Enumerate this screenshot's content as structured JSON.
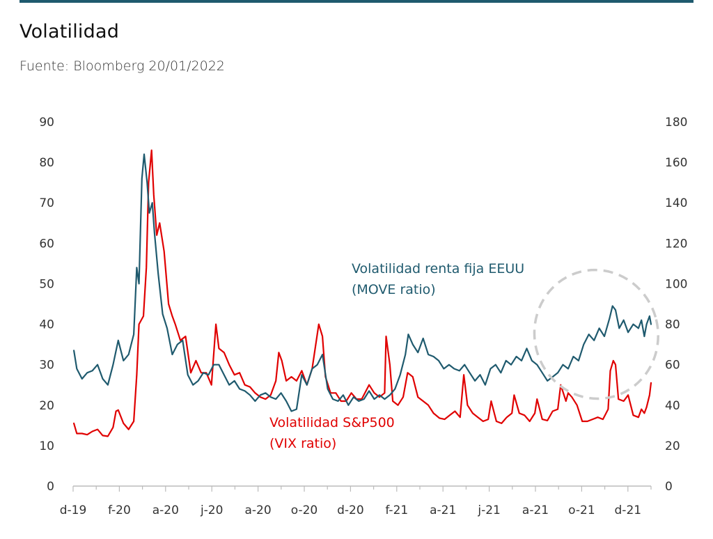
{
  "header": {
    "title": "Volatilidad",
    "subtitle": "Fuente: Bloomberg 20/01/2022"
  },
  "colors": {
    "move": "#1f5a6e",
    "vix": "#e00000",
    "axis": "#bbbbbb",
    "highlight": "#cccccc"
  },
  "chart_data": {
    "type": "line",
    "title": "Volatilidad",
    "subtitle": "Fuente: Bloomberg 20/01/2022",
    "x_tick_labels": [
      "d-19",
      "f-20",
      "a-20",
      "j-20",
      "a-20",
      "o-20",
      "d-20",
      "f-21",
      "a-21",
      "j-21",
      "a-21",
      "o-21",
      "d-21"
    ],
    "x_range": [
      "2019-12-01",
      "2022-01-20"
    ],
    "y_left": {
      "ticks": [
        0,
        10,
        20,
        30,
        40,
        50,
        60,
        70,
        80,
        90
      ],
      "range": [
        0,
        90
      ]
    },
    "y_right": {
      "ticks": [
        0,
        20,
        40,
        60,
        80,
        100,
        120,
        140,
        160,
        180
      ],
      "range": [
        0,
        180
      ]
    },
    "grid": false,
    "annotations": [
      {
        "text_lines": [
          "Volatilidad renta fija EEUU",
          "(MOVE ratio)"
        ],
        "series": "move"
      },
      {
        "text_lines": [
          "Volatilidad S&P500",
          "(VIX ratio)"
        ],
        "series": "vix"
      }
    ],
    "highlight": {
      "shape": "dashed-ellipse",
      "x_range": [
        "2021-08-25",
        "2022-01-20"
      ],
      "y_right_range": [
        50,
        100
      ]
    },
    "series": [
      {
        "name": "Volatilidad S&P500 (VIX ratio)",
        "axis": "left",
        "points": [
          [
            "2019-12-02",
            15.5
          ],
          [
            "2019-12-06",
            13
          ],
          [
            "2019-12-13",
            13
          ],
          [
            "2019-12-20",
            12.7
          ],
          [
            "2019-12-27",
            13.5
          ],
          [
            "2020-01-03",
            14
          ],
          [
            "2020-01-10",
            12.5
          ],
          [
            "2020-01-17",
            12.3
          ],
          [
            "2020-01-24",
            14.5
          ],
          [
            "2020-01-28",
            18.5
          ],
          [
            "2020-01-31",
            18.8
          ],
          [
            "2020-02-07",
            15.5
          ],
          [
            "2020-02-14",
            14
          ],
          [
            "2020-02-21",
            16
          ],
          [
            "2020-02-25",
            27.5
          ],
          [
            "2020-02-28",
            40
          ],
          [
            "2020-03-05",
            42
          ],
          [
            "2020-03-09",
            54
          ],
          [
            "2020-03-12",
            75
          ],
          [
            "2020-03-16",
            83
          ],
          [
            "2020-03-19",
            72
          ],
          [
            "2020-03-23",
            62
          ],
          [
            "2020-03-27",
            65
          ],
          [
            "2020-04-02",
            58
          ],
          [
            "2020-04-08",
            45
          ],
          [
            "2020-04-13",
            42
          ],
          [
            "2020-04-17",
            40
          ],
          [
            "2020-04-24",
            36
          ],
          [
            "2020-05-01",
            37
          ],
          [
            "2020-05-08",
            28
          ],
          [
            "2020-05-15",
            31
          ],
          [
            "2020-05-22",
            28
          ],
          [
            "2020-05-29",
            28
          ],
          [
            "2020-06-05",
            25
          ],
          [
            "2020-06-11",
            40
          ],
          [
            "2020-06-15",
            34
          ],
          [
            "2020-06-22",
            33
          ],
          [
            "2020-06-29",
            30
          ],
          [
            "2020-07-06",
            27.5
          ],
          [
            "2020-07-13",
            28
          ],
          [
            "2020-07-20",
            25
          ],
          [
            "2020-07-27",
            24.5
          ],
          [
            "2020-08-03",
            23
          ],
          [
            "2020-08-10",
            22
          ],
          [
            "2020-08-17",
            21.5
          ],
          [
            "2020-08-24",
            22.5
          ],
          [
            "2020-08-31",
            26
          ],
          [
            "2020-09-04",
            33
          ],
          [
            "2020-09-08",
            31
          ],
          [
            "2020-09-14",
            26
          ],
          [
            "2020-09-21",
            27
          ],
          [
            "2020-09-28",
            26
          ],
          [
            "2020-10-05",
            28.5
          ],
          [
            "2020-10-12",
            25
          ],
          [
            "2020-10-19",
            29
          ],
          [
            "2020-10-28",
            40
          ],
          [
            "2020-11-02",
            37
          ],
          [
            "2020-11-06",
            27
          ],
          [
            "2020-11-13",
            23
          ],
          [
            "2020-11-20",
            23
          ],
          [
            "2020-11-27",
            21
          ],
          [
            "2020-12-04",
            21
          ],
          [
            "2020-12-11",
            23
          ],
          [
            "2020-12-18",
            21.5
          ],
          [
            "2020-12-25",
            21.5
          ],
          [
            "2021-01-04",
            25
          ],
          [
            "2021-01-11",
            23
          ],
          [
            "2021-01-18",
            22
          ],
          [
            "2021-01-25",
            23
          ],
          [
            "2021-01-27",
            37
          ],
          [
            "2021-02-01",
            30
          ],
          [
            "2021-02-05",
            21
          ],
          [
            "2021-02-12",
            20
          ],
          [
            "2021-02-19",
            22
          ],
          [
            "2021-02-25",
            28
          ],
          [
            "2021-03-04",
            27
          ],
          [
            "2021-03-11",
            22
          ],
          [
            "2021-03-18",
            21
          ],
          [
            "2021-03-25",
            20
          ],
          [
            "2021-04-01",
            18
          ],
          [
            "2021-04-09",
            16.8
          ],
          [
            "2021-04-16",
            16.5
          ],
          [
            "2021-04-23",
            17.5
          ],
          [
            "2021-04-30",
            18.5
          ],
          [
            "2021-05-07",
            17
          ],
          [
            "2021-05-12",
            27.5
          ],
          [
            "2021-05-17",
            20
          ],
          [
            "2021-05-24",
            18
          ],
          [
            "2021-05-31",
            17
          ],
          [
            "2021-06-07",
            16
          ],
          [
            "2021-06-14",
            16.5
          ],
          [
            "2021-06-18",
            21
          ],
          [
            "2021-06-25",
            16
          ],
          [
            "2021-07-02",
            15.5
          ],
          [
            "2021-07-09",
            17
          ],
          [
            "2021-07-16",
            18
          ],
          [
            "2021-07-19",
            22.5
          ],
          [
            "2021-07-26",
            18
          ],
          [
            "2021-08-02",
            17.5
          ],
          [
            "2021-08-09",
            16
          ],
          [
            "2021-08-16",
            18
          ],
          [
            "2021-08-19",
            21.5
          ],
          [
            "2021-08-26",
            16.5
          ],
          [
            "2021-09-02",
            16.2
          ],
          [
            "2021-09-09",
            18.5
          ],
          [
            "2021-09-16",
            19
          ],
          [
            "2021-09-20",
            25
          ],
          [
            "2021-09-27",
            21
          ],
          [
            "2021-09-30",
            23
          ],
          [
            "2021-10-05",
            22
          ],
          [
            "2021-10-12",
            20
          ],
          [
            "2021-10-19",
            16
          ],
          [
            "2021-10-26",
            16
          ],
          [
            "2021-11-02",
            16.5
          ],
          [
            "2021-11-09",
            17
          ],
          [
            "2021-11-16",
            16.5
          ],
          [
            "2021-11-23",
            19
          ],
          [
            "2021-11-26",
            28.5
          ],
          [
            "2021-11-30",
            31
          ],
          [
            "2021-12-03",
            30
          ],
          [
            "2021-12-07",
            21.5
          ],
          [
            "2021-12-14",
            21
          ],
          [
            "2021-12-20",
            22.5
          ],
          [
            "2021-12-27",
            17.5
          ],
          [
            "2022-01-03",
            17
          ],
          [
            "2022-01-07",
            19
          ],
          [
            "2022-01-11",
            18
          ],
          [
            "2022-01-14",
            19.5
          ],
          [
            "2022-01-18",
            22.5
          ],
          [
            "2022-01-20",
            25.5
          ]
        ]
      },
      {
        "name": "Volatilidad renta fija EEUU (MOVE ratio)",
        "axis": "right",
        "points": [
          [
            "2019-12-02",
            67
          ],
          [
            "2019-12-06",
            58
          ],
          [
            "2019-12-13",
            53
          ],
          [
            "2019-12-20",
            56
          ],
          [
            "2019-12-27",
            57
          ],
          [
            "2020-01-03",
            60
          ],
          [
            "2020-01-10",
            53
          ],
          [
            "2020-01-17",
            50
          ],
          [
            "2020-01-24",
            60
          ],
          [
            "2020-01-31",
            72
          ],
          [
            "2020-02-07",
            62
          ],
          [
            "2020-02-14",
            65
          ],
          [
            "2020-02-21",
            75
          ],
          [
            "2020-02-25",
            108
          ],
          [
            "2020-02-28",
            100
          ],
          [
            "2020-03-03",
            152
          ],
          [
            "2020-03-06",
            164
          ],
          [
            "2020-03-10",
            150
          ],
          [
            "2020-03-13",
            135
          ],
          [
            "2020-03-17",
            140
          ],
          [
            "2020-03-20",
            125
          ],
          [
            "2020-03-25",
            105
          ],
          [
            "2020-03-31",
            85
          ],
          [
            "2020-04-06",
            78
          ],
          [
            "2020-04-13",
            65
          ],
          [
            "2020-04-20",
            70
          ],
          [
            "2020-04-27",
            72
          ],
          [
            "2020-05-04",
            55
          ],
          [
            "2020-05-11",
            50
          ],
          [
            "2020-05-18",
            52
          ],
          [
            "2020-05-25",
            56
          ],
          [
            "2020-06-01",
            55
          ],
          [
            "2020-06-08",
            60
          ],
          [
            "2020-06-15",
            60
          ],
          [
            "2020-06-22",
            55
          ],
          [
            "2020-06-29",
            50
          ],
          [
            "2020-07-06",
            52
          ],
          [
            "2020-07-13",
            48
          ],
          [
            "2020-07-20",
            47
          ],
          [
            "2020-07-27",
            45
          ],
          [
            "2020-08-03",
            42
          ],
          [
            "2020-08-10",
            45
          ],
          [
            "2020-08-17",
            46
          ],
          [
            "2020-08-24",
            44
          ],
          [
            "2020-08-31",
            43
          ],
          [
            "2020-09-07",
            46
          ],
          [
            "2020-09-14",
            42
          ],
          [
            "2020-09-21",
            37
          ],
          [
            "2020-09-28",
            38
          ],
          [
            "2020-10-05",
            55
          ],
          [
            "2020-10-12",
            50
          ],
          [
            "2020-10-19",
            58
          ],
          [
            "2020-10-26",
            60
          ],
          [
            "2020-11-02",
            65
          ],
          [
            "2020-11-09",
            48
          ],
          [
            "2020-11-16",
            43
          ],
          [
            "2020-11-23",
            42
          ],
          [
            "2020-11-30",
            45
          ],
          [
            "2020-12-07",
            40
          ],
          [
            "2020-12-14",
            44
          ],
          [
            "2020-12-21",
            42
          ],
          [
            "2020-12-28",
            43
          ],
          [
            "2021-01-04",
            47
          ],
          [
            "2021-01-11",
            43
          ],
          [
            "2021-01-18",
            45
          ],
          [
            "2021-01-25",
            43
          ],
          [
            "2021-02-01",
            45
          ],
          [
            "2021-02-08",
            48
          ],
          [
            "2021-02-15",
            55
          ],
          [
            "2021-02-22",
            65
          ],
          [
            "2021-02-26",
            75
          ],
          [
            "2021-03-04",
            70
          ],
          [
            "2021-03-11",
            66
          ],
          [
            "2021-03-18",
            73
          ],
          [
            "2021-03-25",
            65
          ],
          [
            "2021-04-01",
            64
          ],
          [
            "2021-04-08",
            62
          ],
          [
            "2021-04-15",
            58
          ],
          [
            "2021-04-22",
            60
          ],
          [
            "2021-04-29",
            58
          ],
          [
            "2021-05-06",
            57
          ],
          [
            "2021-05-13",
            60
          ],
          [
            "2021-05-20",
            56
          ],
          [
            "2021-05-27",
            52
          ],
          [
            "2021-06-03",
            55
          ],
          [
            "2021-06-10",
            50
          ],
          [
            "2021-06-17",
            58
          ],
          [
            "2021-06-24",
            60
          ],
          [
            "2021-07-01",
            56
          ],
          [
            "2021-07-08",
            62
          ],
          [
            "2021-07-15",
            60
          ],
          [
            "2021-07-22",
            64
          ],
          [
            "2021-07-29",
            62
          ],
          [
            "2021-08-05",
            68
          ],
          [
            "2021-08-12",
            62
          ],
          [
            "2021-08-19",
            60
          ],
          [
            "2021-08-26",
            56
          ],
          [
            "2021-09-02",
            52
          ],
          [
            "2021-09-09",
            54
          ],
          [
            "2021-09-16",
            56
          ],
          [
            "2021-09-23",
            60
          ],
          [
            "2021-09-30",
            58
          ],
          [
            "2021-10-07",
            64
          ],
          [
            "2021-10-14",
            62
          ],
          [
            "2021-10-21",
            70
          ],
          [
            "2021-10-28",
            75
          ],
          [
            "2021-11-04",
            72
          ],
          [
            "2021-11-11",
            78
          ],
          [
            "2021-11-18",
            74
          ],
          [
            "2021-11-25",
            83
          ],
          [
            "2021-11-29",
            89
          ],
          [
            "2021-12-03",
            87
          ],
          [
            "2021-12-08",
            78
          ],
          [
            "2021-12-14",
            82
          ],
          [
            "2021-12-20",
            76
          ],
          [
            "2021-12-27",
            80
          ],
          [
            "2022-01-03",
            78
          ],
          [
            "2022-01-07",
            82
          ],
          [
            "2022-01-11",
            74
          ],
          [
            "2022-01-14",
            80
          ],
          [
            "2022-01-18",
            84
          ],
          [
            "2022-01-20",
            80
          ]
        ]
      }
    ]
  }
}
